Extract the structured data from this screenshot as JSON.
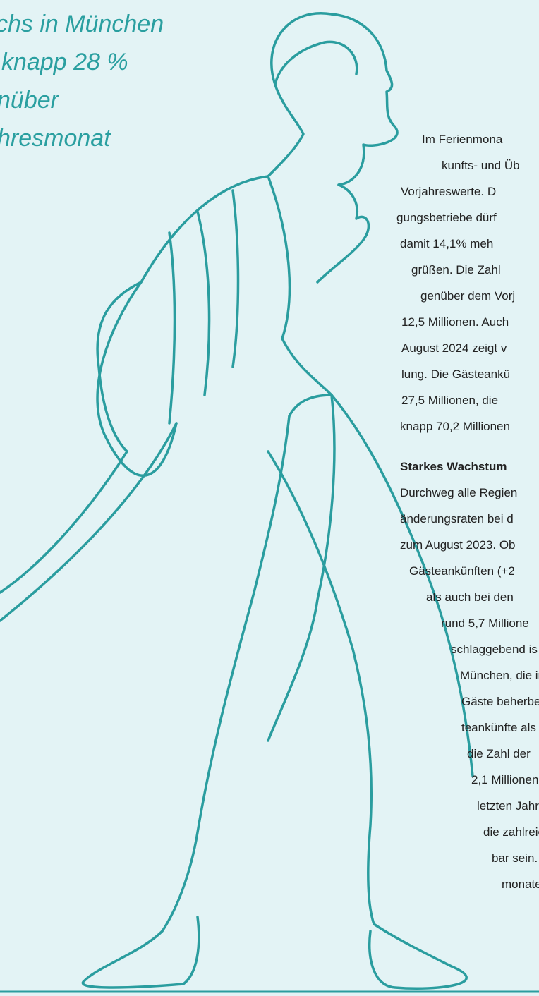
{
  "pull_quote": {
    "lines": [
      "chs in München",
      "knapp 28 %",
      "nüber",
      "hresmonat"
    ]
  },
  "body": {
    "paragraph_1": [
      "Im Ferienmona",
      "kunfts- und Üb",
      "Vorjahreswerte. D",
      "gungsbetriebe dürf",
      "damit 14,1% meh",
      "grüßen. Die Zahl",
      "genüber dem Vorj",
      "12,5 Millionen. Auch",
      "August 2024 zeigt v",
      "lung. Die Gästeankü",
      "27,5 Millionen, die",
      "knapp 70,2 Millionen"
    ],
    "heading": "Starkes Wachstum",
    "paragraph_2": [
      "Durchweg alle Regien",
      "änderungsraten bei d",
      "zum August 2023. Ob",
      "Gästeankünften (+2",
      "als auch bei den",
      "rund 5,7 Millione",
      "schlaggebend is",
      "München, die in",
      "Gäste beherber",
      "teankünfte als",
      "die Zahl der",
      "2,1 Millionen",
      "letzten Jahres",
      "die zahlreich",
      "bar sein.",
      "monaten"
    ]
  }
}
